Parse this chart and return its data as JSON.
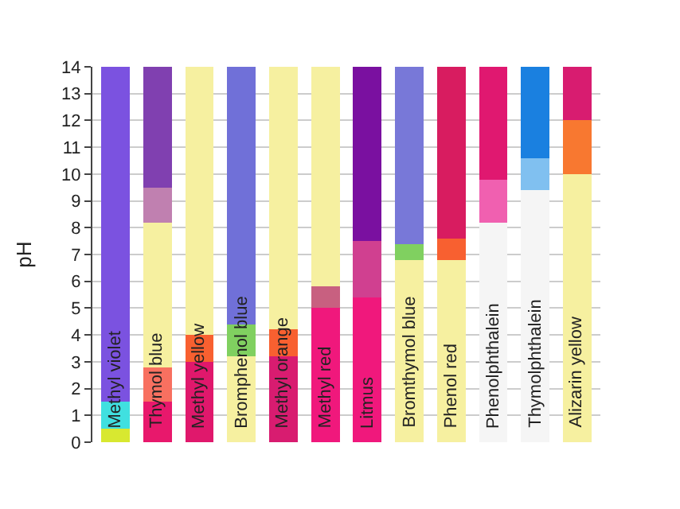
{
  "chart_data": {
    "type": "bar",
    "stacked": true,
    "ylabel": "pH",
    "categories": [
      "Methyl violet",
      "Thymol blue",
      "Methyl yellow",
      "Bromphenol blue",
      "Methyl orange",
      "Methyl red",
      "Litmus",
      "Bromthymol blue",
      "Phenol red",
      "Phenolphthalein",
      "Thymolphthalein",
      "Alizarin yellow"
    ],
    "ylim": [
      0,
      14
    ],
    "yticks": [
      0,
      1,
      2,
      3,
      4,
      5,
      6,
      7,
      8,
      9,
      10,
      11,
      12,
      13,
      14
    ],
    "grid": "y",
    "tick_labels": "y",
    "series": [
      {
        "values": [
          0.5,
          1.5,
          3,
          3.2,
          3.2,
          5,
          5.4,
          6.8,
          6.8,
          8.2,
          9.4,
          10
        ],
        "colors": [
          "#d8e830",
          "#e8186c",
          "#e0186c",
          "#f6f0a0",
          "#d81c70",
          "#f0187c",
          "#f0187c",
          "#f6f0a0",
          "#f6f0a0",
          "#f5f5f5",
          "#f5f5f5",
          "#f6f0a0"
        ]
      },
      {
        "values": [
          1,
          1.3,
          1,
          1.2,
          1,
          0.8,
          2.1,
          0.6,
          0.8,
          1.6,
          1.2,
          2
        ],
        "colors": [
          "#40e0e0",
          "#f87060",
          "#f86030",
          "#80d060",
          "#f86030",
          "#c86080",
          "#d04090",
          "#80d060",
          "#f86030",
          "#f060b0",
          "#80c0f0",
          "#f87830"
        ]
      },
      {
        "values": [
          12.5,
          5.4,
          10,
          9.6,
          9.8,
          8.2,
          6.5,
          6.6,
          6.4,
          4.2,
          3.4,
          2
        ],
        "colors": [
          "#7b52e0",
          "#f6f0a0",
          "#f6f0a0",
          "#7070d8",
          "#f6f0a0",
          "#f6f0a0",
          "#7a10a0",
          "#7878d8",
          "#d81c60",
          "#e01870",
          "#1a80e0",
          "#d81c70"
        ]
      },
      {
        "values": [
          null,
          1.3,
          null,
          null,
          null,
          null,
          null,
          null,
          null,
          null,
          null,
          null
        ],
        "colors": [
          "#ffffff",
          "#c080b0",
          "#ffffff",
          "#ffffff",
          "#ffffff",
          "#ffffff",
          "#ffffff",
          "#ffffff",
          "#ffffff",
          "#ffffff",
          "#ffffff",
          "#ffffff"
        ]
      },
      {
        "values": [
          null,
          4.5,
          null,
          null,
          null,
          null,
          null,
          null,
          null,
          null,
          null,
          null
        ],
        "colors": [
          "#ffffff",
          "#8040b0",
          "#ffffff",
          "#ffffff",
          "#ffffff",
          "#ffffff",
          "#ffffff",
          "#ffffff",
          "#ffffff",
          "#ffffff",
          "#ffffff",
          "#ffffff"
        ]
      }
    ]
  }
}
